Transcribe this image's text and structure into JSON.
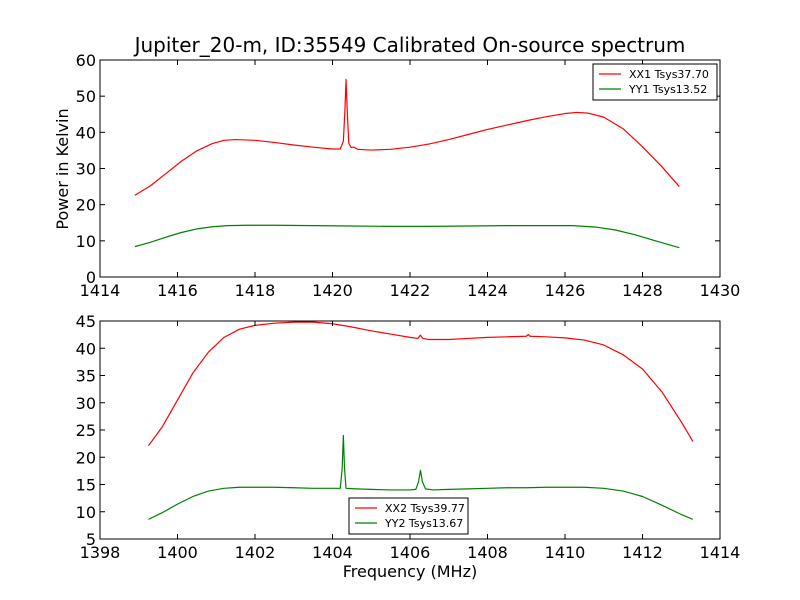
{
  "chart_data": [
    {
      "type": "line",
      "title": "Jupiter_20-m, ID:35549 Calibrated On-source spectrum",
      "xlabel": "",
      "ylabel": "Power in Kelvin",
      "xlim": [
        1414,
        1430
      ],
      "ylim": [
        0,
        60
      ],
      "xticks": [
        1414,
        1416,
        1418,
        1420,
        1422,
        1424,
        1426,
        1428,
        1430
      ],
      "yticks": [
        0,
        10,
        20,
        30,
        40,
        50,
        60
      ],
      "legend_position": "top-right",
      "series": [
        {
          "name": "XX1 Tsys37.70",
          "color": "#ff0000",
          "points": [
            [
              1414.9,
              22.6
            ],
            [
              1415.3,
              25.2
            ],
            [
              1415.7,
              28.6
            ],
            [
              1416.1,
              32.0
            ],
            [
              1416.5,
              34.9
            ],
            [
              1416.9,
              36.9
            ],
            [
              1417.2,
              37.8
            ],
            [
              1417.5,
              38.0
            ],
            [
              1418.0,
              37.8
            ],
            [
              1418.5,
              37.2
            ],
            [
              1419.0,
              36.5
            ],
            [
              1419.5,
              35.9
            ],
            [
              1420.0,
              35.4
            ],
            [
              1420.2,
              35.4
            ],
            [
              1420.28,
              37.5
            ],
            [
              1420.32,
              46.0
            ],
            [
              1420.35,
              54.6
            ],
            [
              1420.38,
              46.0
            ],
            [
              1420.42,
              37.0
            ],
            [
              1420.48,
              35.8
            ],
            [
              1420.55,
              35.9
            ],
            [
              1420.65,
              35.3
            ],
            [
              1421.0,
              35.1
            ],
            [
              1421.5,
              35.3
            ],
            [
              1422.0,
              35.9
            ],
            [
              1422.5,
              36.8
            ],
            [
              1423.0,
              38.0
            ],
            [
              1423.5,
              39.4
            ],
            [
              1424.0,
              40.8
            ],
            [
              1424.5,
              42.0
            ],
            [
              1425.0,
              43.2
            ],
            [
              1425.5,
              44.3
            ],
            [
              1426.0,
              45.2
            ],
            [
              1426.3,
              45.5
            ],
            [
              1426.6,
              45.3
            ],
            [
              1427.0,
              44.2
            ],
            [
              1427.5,
              41.0
            ],
            [
              1428.0,
              36.0
            ],
            [
              1428.5,
              30.5
            ],
            [
              1428.95,
              25.0
            ]
          ]
        },
        {
          "name": "YY1 Tsys13.52",
          "color": "#008000",
          "points": [
            [
              1414.9,
              8.4
            ],
            [
              1415.3,
              9.6
            ],
            [
              1415.7,
              11.0
            ],
            [
              1416.1,
              12.3
            ],
            [
              1416.5,
              13.3
            ],
            [
              1416.9,
              13.9
            ],
            [
              1417.3,
              14.2
            ],
            [
              1417.8,
              14.3
            ],
            [
              1418.5,
              14.3
            ],
            [
              1419.5,
              14.2
            ],
            [
              1420.5,
              14.1
            ],
            [
              1421.5,
              14.0
            ],
            [
              1422.5,
              14.0
            ],
            [
              1423.5,
              14.1
            ],
            [
              1424.5,
              14.2
            ],
            [
              1425.5,
              14.2
            ],
            [
              1426.2,
              14.2
            ],
            [
              1426.8,
              13.8
            ],
            [
              1427.3,
              13.0
            ],
            [
              1427.8,
              11.7
            ],
            [
              1428.3,
              10.1
            ],
            [
              1428.95,
              8.1
            ]
          ]
        }
      ]
    },
    {
      "type": "line",
      "title": "",
      "xlabel": "Frequency (MHz)",
      "ylabel": "",
      "xlim": [
        1398,
        1414
      ],
      "ylim": [
        5,
        45
      ],
      "xticks": [
        1398,
        1400,
        1402,
        1404,
        1406,
        1408,
        1410,
        1412,
        1414
      ],
      "yticks": [
        5,
        10,
        15,
        20,
        25,
        30,
        35,
        40,
        45
      ],
      "legend_position": "bottom-center",
      "series": [
        {
          "name": "XX2 Tsys39.77",
          "color": "#ff0000",
          "points": [
            [
              1399.25,
              22.1
            ],
            [
              1399.6,
              25.5
            ],
            [
              1400.0,
              30.5
            ],
            [
              1400.4,
              35.5
            ],
            [
              1400.8,
              39.3
            ],
            [
              1401.2,
              42.0
            ],
            [
              1401.6,
              43.5
            ],
            [
              1402.0,
              44.2
            ],
            [
              1402.5,
              44.6
            ],
            [
              1403.0,
              44.8
            ],
            [
              1403.5,
              44.8
            ],
            [
              1404.0,
              44.5
            ],
            [
              1404.5,
              43.9
            ],
            [
              1405.0,
              43.2
            ],
            [
              1405.5,
              42.6
            ],
            [
              1406.0,
              42.0
            ],
            [
              1406.2,
              41.8
            ],
            [
              1406.27,
              42.4
            ],
            [
              1406.33,
              41.8
            ],
            [
              1406.5,
              41.6
            ],
            [
              1407.0,
              41.6
            ],
            [
              1407.5,
              41.8
            ],
            [
              1408.0,
              42.0
            ],
            [
              1408.5,
              42.1
            ],
            [
              1409.0,
              42.2
            ],
            [
              1409.05,
              42.5
            ],
            [
              1409.1,
              42.2
            ],
            [
              1409.5,
              42.1
            ],
            [
              1410.0,
              41.9
            ],
            [
              1410.5,
              41.5
            ],
            [
              1411.0,
              40.6
            ],
            [
              1411.5,
              38.8
            ],
            [
              1412.0,
              36.2
            ],
            [
              1412.5,
              32.0
            ],
            [
              1413.0,
              26.5
            ],
            [
              1413.3,
              22.9
            ]
          ]
        },
        {
          "name": "YY2 Tsys13.67",
          "color": "#008000",
          "points": [
            [
              1399.25,
              8.6
            ],
            [
              1399.6,
              9.8
            ],
            [
              1400.0,
              11.4
            ],
            [
              1400.4,
              12.8
            ],
            [
              1400.8,
              13.8
            ],
            [
              1401.2,
              14.3
            ],
            [
              1401.6,
              14.5
            ],
            [
              1402.0,
              14.5
            ],
            [
              1402.5,
              14.5
            ],
            [
              1403.0,
              14.4
            ],
            [
              1403.5,
              14.3
            ],
            [
              1404.0,
              14.3
            ],
            [
              1404.2,
              14.3
            ],
            [
              1404.25,
              18.0
            ],
            [
              1404.28,
              24.0
            ],
            [
              1404.31,
              18.0
            ],
            [
              1404.35,
              14.3
            ],
            [
              1404.6,
              14.2
            ],
            [
              1405.0,
              14.1
            ],
            [
              1405.5,
              14.0
            ],
            [
              1406.0,
              14.0
            ],
            [
              1406.15,
              14.1
            ],
            [
              1406.22,
              15.5
            ],
            [
              1406.27,
              17.6
            ],
            [
              1406.32,
              15.5
            ],
            [
              1406.4,
              14.2
            ],
            [
              1406.6,
              14.0
            ],
            [
              1407.0,
              14.1
            ],
            [
              1407.5,
              14.2
            ],
            [
              1408.0,
              14.3
            ],
            [
              1408.5,
              14.4
            ],
            [
              1409.0,
              14.4
            ],
            [
              1409.5,
              14.5
            ],
            [
              1410.0,
              14.5
            ],
            [
              1410.5,
              14.5
            ],
            [
              1411.0,
              14.3
            ],
            [
              1411.5,
              13.8
            ],
            [
              1412.0,
              12.8
            ],
            [
              1412.5,
              11.2
            ],
            [
              1413.0,
              9.5
            ],
            [
              1413.3,
              8.6
            ]
          ]
        }
      ]
    }
  ]
}
